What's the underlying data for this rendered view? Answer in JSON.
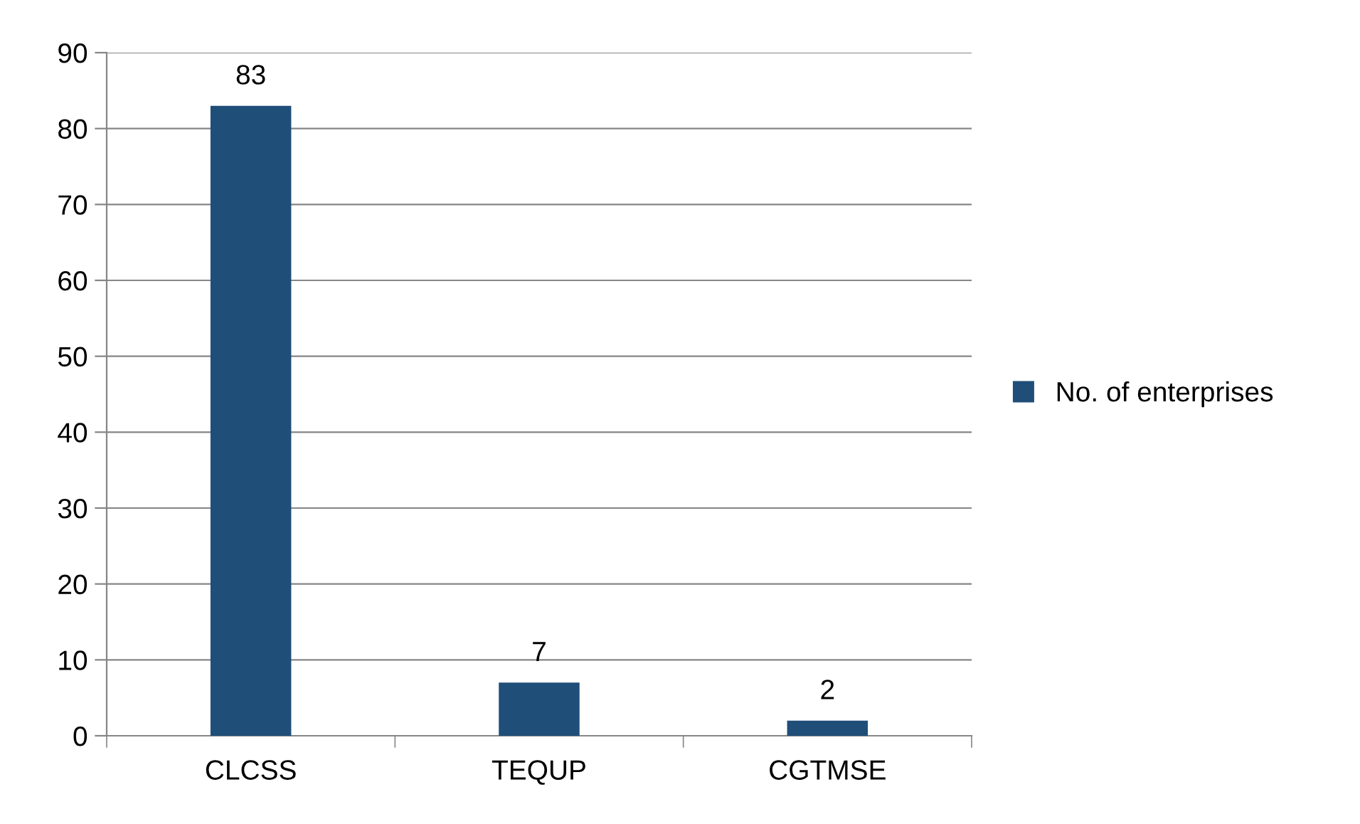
{
  "chart_data": {
    "type": "bar",
    "categories": [
      "CLCSS",
      "TEQUP",
      "CGTMSE"
    ],
    "series": [
      {
        "name": "No. of enterprises",
        "color": "#1f4e79",
        "values": [
          83,
          7,
          2
        ]
      }
    ],
    "ylim": [
      0,
      90
    ],
    "yticks": [
      0,
      10,
      20,
      30,
      40,
      50,
      60,
      70,
      80,
      90
    ],
    "grid": "y",
    "legend": "right",
    "data_labels": true
  }
}
